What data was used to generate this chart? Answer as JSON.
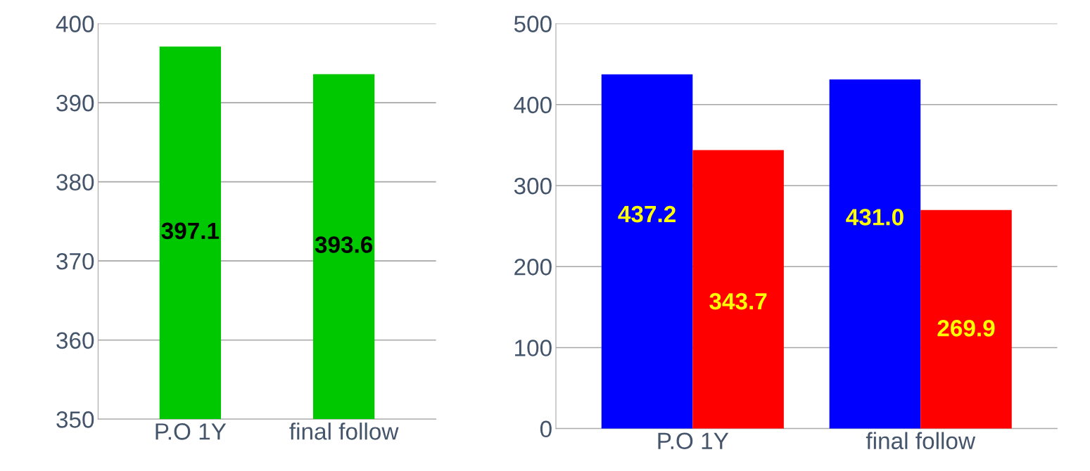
{
  "chart_data": [
    {
      "type": "bar",
      "categories": [
        "P.O 1Y",
        "final follow"
      ],
      "series": [
        {
          "color": "#00c800",
          "values": [
            397.1,
            393.6
          ],
          "value_labels": [
            "397.1",
            "393.6"
          ]
        }
      ],
      "ylim": [
        350,
        400
      ],
      "yticks": [
        350,
        360,
        370,
        380,
        390,
        400
      ],
      "grid": "y"
    },
    {
      "type": "bar",
      "categories": [
        "P.O 1Y",
        "final follow"
      ],
      "series": [
        {
          "color": "#0000ff",
          "values": [
            437.2,
            431.0
          ],
          "value_labels": [
            "437.2",
            "431.0"
          ]
        },
        {
          "color": "#ff0000",
          "values": [
            343.7,
            269.9
          ],
          "value_labels": [
            "343.7",
            "269.9"
          ]
        }
      ],
      "ylim": [
        0,
        500
      ],
      "yticks": [
        0,
        100,
        200,
        300,
        400,
        500
      ],
      "grid": "y"
    }
  ]
}
